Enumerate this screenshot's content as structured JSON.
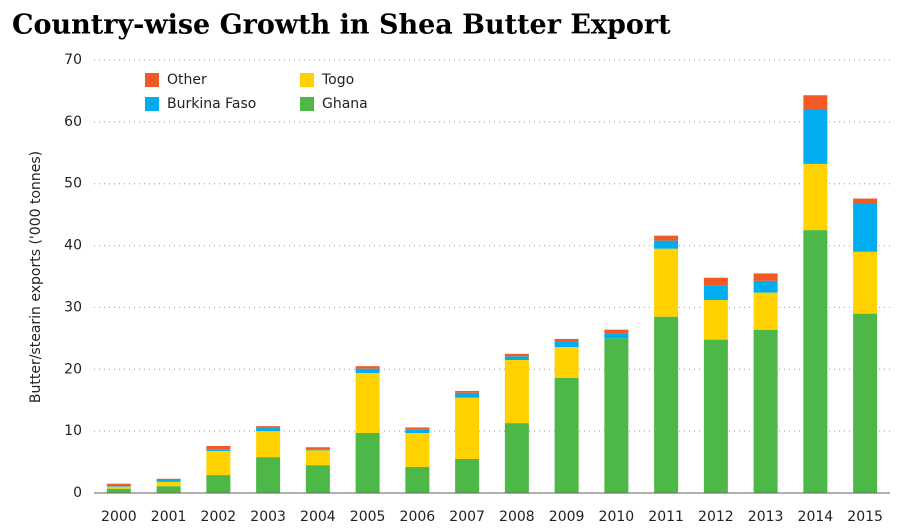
{
  "chart_data": {
    "type": "stacked_bar",
    "title": "Country-wise Growth in Shea Butter Export",
    "y_label": "Butter/stearin exports ('000 tonnes)",
    "categories": [
      "2000",
      "2001",
      "2002",
      "2003",
      "2004",
      "2005",
      "2006",
      "2007",
      "2008",
      "2009",
      "2010",
      "2011",
      "2012",
      "2013",
      "2014",
      "2015"
    ],
    "series": [
      {
        "name": "Ghana",
        "color": "#4db848",
        "values": [
          0.7,
          1.1,
          2.9,
          5.8,
          4.5,
          9.7,
          4.2,
          5.5,
          11.3,
          18.6,
          25,
          28.5,
          24.8,
          26.4,
          42.5,
          29
        ]
      },
      {
        "name": "Togo",
        "color": "#ffd200",
        "values": [
          0.3,
          0.7,
          3.9,
          4.2,
          2.4,
          9.7,
          5.5,
          9.9,
          10.2,
          5.0,
          0,
          11,
          6.4,
          6.0,
          10.7,
          10
        ]
      },
      {
        "name": "Burkina Faso",
        "color": "#00aeef",
        "values": [
          0.1,
          0.3,
          0.2,
          0.5,
          0.2,
          0.7,
          0.6,
          0.8,
          0.6,
          0.9,
          0.8,
          1.3,
          2.3,
          1.9,
          8.8,
          7.8
        ]
      },
      {
        "name": "Other",
        "color": "#f15a24",
        "values": [
          0.4,
          0.2,
          0.6,
          0.3,
          0.3,
          0.4,
          0.3,
          0.3,
          0.4,
          0.4,
          0.6,
          0.8,
          1.3,
          1.2,
          2.3,
          0.8
        ]
      }
    ],
    "ylim": [
      0,
      70
    ],
    "yticks": [
      0,
      10,
      20,
      30,
      40,
      50,
      60,
      70
    ],
    "grid": true
  }
}
